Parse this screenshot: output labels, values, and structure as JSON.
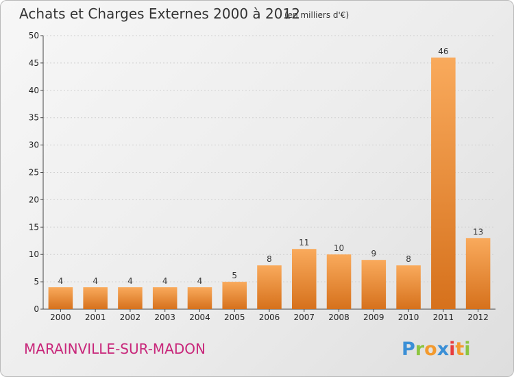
{
  "title": "Achats et Charges Externes 2000 à 2012",
  "unit": "(en milliers d'€)",
  "place": "MARAINVILLE-SUR-MADON",
  "logo": {
    "letters": [
      {
        "ch": "P",
        "color": "#3a8fd6"
      },
      {
        "ch": "r",
        "color": "#8cc540"
      },
      {
        "ch": "o",
        "color": "#f39a2e"
      },
      {
        "ch": "x",
        "color": "#3a8fd6"
      },
      {
        "ch": "i",
        "color": "#e83d3d"
      },
      {
        "ch": "t",
        "color": "#f39a2e"
      },
      {
        "ch": "i",
        "color": "#8cc540"
      }
    ]
  },
  "colors": {
    "bar_top": "#f9aa5c",
    "bar_bottom": "#d6711c",
    "grid": "#d0d0d0",
    "axis": "#444444"
  },
  "chart_data": {
    "type": "bar",
    "title": "Achats et Charges Externes 2000 à 2012",
    "categories": [
      "2000",
      "2001",
      "2002",
      "2003",
      "2004",
      "2005",
      "2006",
      "2007",
      "2008",
      "2009",
      "2010",
      "2011",
      "2012"
    ],
    "values": [
      4,
      4,
      4,
      4,
      4,
      5,
      8,
      11,
      10,
      9,
      8,
      46,
      13
    ],
    "ylim": [
      0,
      50
    ],
    "yticks": [
      0,
      5,
      10,
      15,
      20,
      25,
      30,
      35,
      40,
      45,
      50
    ],
    "xlabel": "",
    "ylabel": "",
    "grid": true
  }
}
